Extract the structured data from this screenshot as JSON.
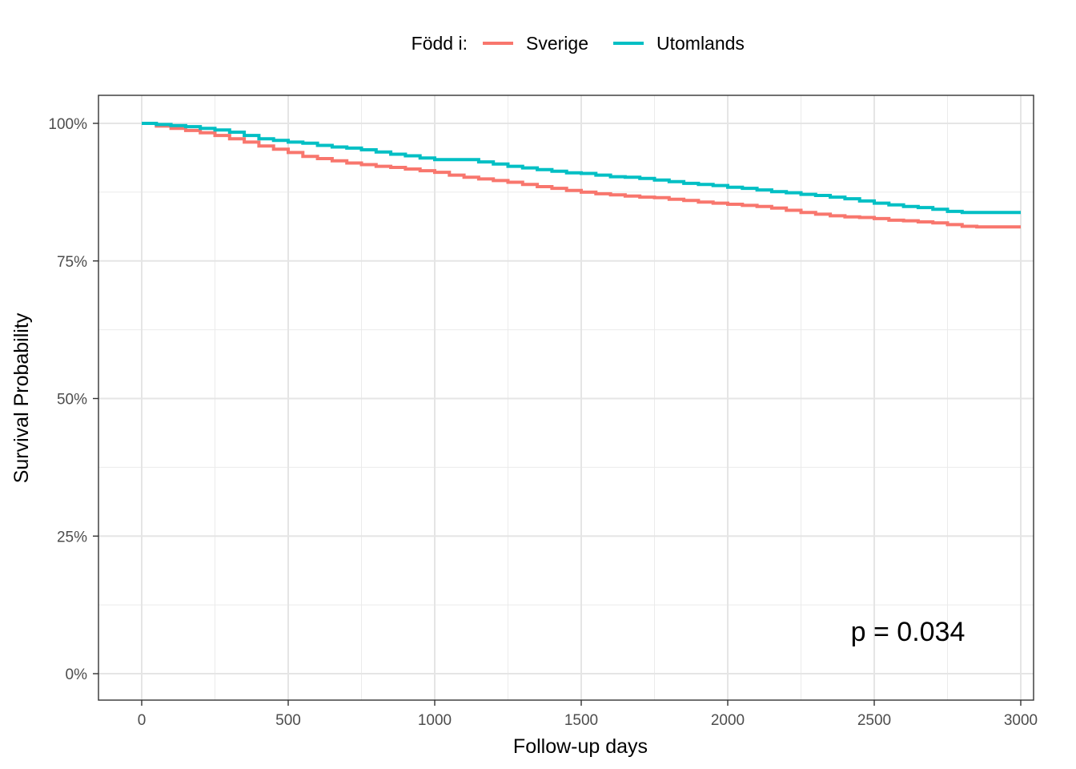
{
  "chart_data": {
    "type": "line",
    "subtype": "kaplan-meier step",
    "xlabel": "Follow-up days",
    "ylabel": "Survival Probability",
    "xlim": [
      0,
      3000
    ],
    "ylim": [
      0,
      1
    ],
    "x_ticks": [
      0,
      500,
      1000,
      1500,
      2000,
      2500,
      3000
    ],
    "x_tick_labels": [
      "0",
      "500",
      "1000",
      "1500",
      "2000",
      "2500",
      "3000"
    ],
    "y_ticks": [
      0,
      0.25,
      0.5,
      0.75,
      1.0
    ],
    "y_tick_labels": [
      "0%",
      "25%",
      "50%",
      "75%",
      "100%"
    ],
    "grid": true,
    "legend": {
      "title": "Född i:",
      "position": "top",
      "entries": [
        "Sverige",
        "Utomlands"
      ]
    },
    "annotation": "p = 0.034",
    "series": [
      {
        "name": "Sverige",
        "color": "#F8766D",
        "x": [
          0,
          50,
          100,
          150,
          200,
          250,
          300,
          350,
          400,
          450,
          500,
          550,
          600,
          650,
          700,
          750,
          800,
          850,
          900,
          950,
          1000,
          1050,
          1100,
          1150,
          1200,
          1250,
          1300,
          1350,
          1400,
          1450,
          1500,
          1550,
          1600,
          1650,
          1700,
          1750,
          1800,
          1850,
          1900,
          1950,
          2000,
          2050,
          2100,
          2150,
          2200,
          2250,
          2300,
          2350,
          2400,
          2450,
          2500,
          2550,
          2600,
          2650,
          2700,
          2750,
          2800,
          2850,
          2900,
          2950,
          3000
        ],
        "y": [
          1.0,
          0.995,
          0.991,
          0.987,
          0.983,
          0.978,
          0.972,
          0.966,
          0.959,
          0.953,
          0.947,
          0.94,
          0.936,
          0.932,
          0.928,
          0.925,
          0.922,
          0.92,
          0.917,
          0.914,
          0.911,
          0.906,
          0.902,
          0.899,
          0.896,
          0.893,
          0.889,
          0.885,
          0.882,
          0.878,
          0.875,
          0.872,
          0.87,
          0.868,
          0.866,
          0.865,
          0.862,
          0.86,
          0.857,
          0.855,
          0.853,
          0.851,
          0.849,
          0.846,
          0.842,
          0.838,
          0.835,
          0.832,
          0.83,
          0.829,
          0.827,
          0.824,
          0.823,
          0.821,
          0.819,
          0.816,
          0.813,
          0.812,
          0.812,
          0.812,
          0.812
        ]
      },
      {
        "name": "Utomlands",
        "color": "#00BFC4",
        "x": [
          0,
          50,
          100,
          150,
          200,
          250,
          300,
          350,
          400,
          450,
          500,
          550,
          600,
          650,
          700,
          750,
          800,
          850,
          900,
          950,
          1000,
          1050,
          1100,
          1150,
          1200,
          1250,
          1300,
          1350,
          1400,
          1450,
          1500,
          1550,
          1600,
          1650,
          1700,
          1750,
          1800,
          1850,
          1900,
          1950,
          2000,
          2050,
          2100,
          2150,
          2200,
          2250,
          2300,
          2350,
          2400,
          2450,
          2500,
          2550,
          2600,
          2650,
          2700,
          2750,
          2800,
          2850,
          2900,
          2950,
          3000
        ],
        "y": [
          1.0,
          0.998,
          0.996,
          0.994,
          0.991,
          0.988,
          0.984,
          0.978,
          0.972,
          0.969,
          0.966,
          0.964,
          0.96,
          0.957,
          0.955,
          0.952,
          0.948,
          0.944,
          0.941,
          0.937,
          0.934,
          0.934,
          0.934,
          0.93,
          0.926,
          0.922,
          0.919,
          0.916,
          0.913,
          0.91,
          0.909,
          0.906,
          0.903,
          0.902,
          0.9,
          0.897,
          0.894,
          0.891,
          0.889,
          0.887,
          0.884,
          0.882,
          0.879,
          0.876,
          0.874,
          0.871,
          0.869,
          0.866,
          0.863,
          0.859,
          0.855,
          0.852,
          0.849,
          0.847,
          0.844,
          0.84,
          0.838,
          0.838,
          0.838,
          0.838,
          0.838
        ]
      }
    ]
  }
}
